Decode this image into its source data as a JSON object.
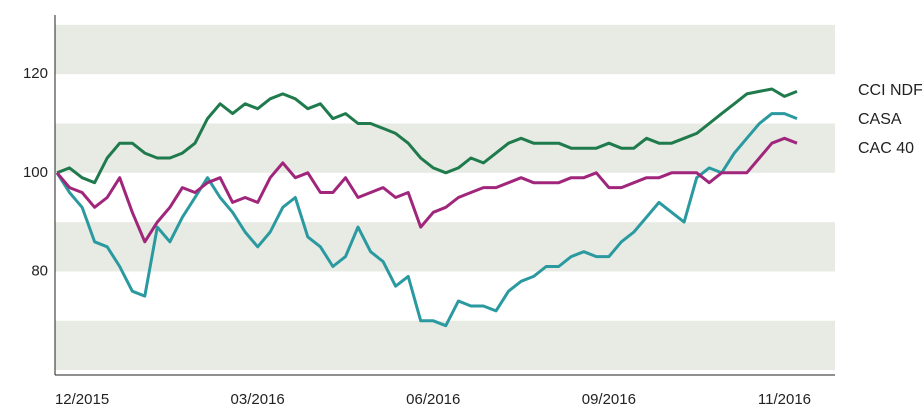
{
  "chart_data": {
    "type": "line",
    "categories": [
      null,
      null,
      "12/2015",
      null,
      null,
      null,
      null,
      null,
      null,
      null,
      null,
      null,
      null,
      null,
      null,
      null,
      "03/2016",
      null,
      null,
      null,
      null,
      null,
      null,
      null,
      null,
      null,
      null,
      null,
      null,
      null,
      "06/2016",
      null,
      null,
      null,
      null,
      null,
      null,
      null,
      null,
      null,
      null,
      null,
      null,
      null,
      "09/2016",
      null,
      null,
      null,
      null,
      null,
      null,
      null,
      null,
      null,
      null,
      null,
      null,
      null,
      "11/2016",
      null
    ],
    "series": [
      {
        "name": "CCI NDF",
        "color": "#1f7a4c",
        "values": [
          100,
          101,
          99,
          98,
          103,
          106,
          106,
          104,
          103,
          103,
          104,
          106,
          111,
          114,
          112,
          114,
          113,
          115,
          116,
          115,
          113,
          114,
          111,
          112,
          110,
          110,
          109,
          108,
          106,
          103,
          101,
          100,
          101,
          103,
          102,
          104,
          106,
          107,
          106,
          106,
          106,
          105,
          105,
          105,
          106,
          105,
          105,
          107,
          106,
          106,
          107,
          108,
          110,
          112,
          114,
          116,
          116.5,
          117,
          115.5,
          116.5
        ]
      },
      {
        "name": "CASA",
        "color": "#2a9aa0",
        "values": [
          100,
          96,
          93,
          86,
          85,
          81,
          76,
          75,
          89,
          86,
          91,
          95,
          99,
          95,
          92,
          88,
          85,
          88,
          93,
          95,
          87,
          85,
          81,
          83,
          89,
          84,
          82,
          77,
          79,
          70,
          70,
          69,
          74,
          73,
          73,
          72,
          76,
          78,
          79,
          81,
          81,
          83,
          84,
          83,
          83,
          86,
          88,
          91,
          94,
          92,
          90,
          99,
          101,
          100,
          104,
          107,
          110,
          112,
          112,
          111
        ]
      },
      {
        "name": "CAC 40",
        "color": "#a0267c",
        "values": [
          100,
          97,
          96,
          93,
          95,
          99,
          92,
          86,
          90,
          93,
          97,
          96,
          98,
          99,
          94,
          95,
          94,
          99,
          102,
          99,
          100,
          96,
          96,
          99,
          95,
          96,
          97,
          95,
          96,
          89,
          92,
          93,
          95,
          96,
          97,
          97,
          98,
          99,
          98,
          98,
          98,
          99,
          99,
          100,
          97,
          97,
          98,
          99,
          99,
          100,
          100,
          100,
          98,
          100,
          100,
          100,
          103,
          106,
          107,
          106
        ]
      }
    ],
    "ylim": [
      59,
      132
    ],
    "yticks": [
      80,
      100,
      120
    ],
    "grid": "bands"
  }
}
